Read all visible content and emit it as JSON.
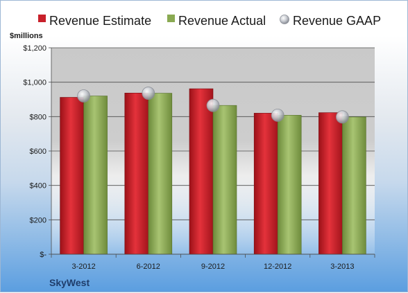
{
  "company": "SkyWest",
  "chart_data": {
    "type": "bar",
    "unit_label": "$millions",
    "categories": [
      "3-2012",
      "6-2012",
      "9-2012",
      "12-2012",
      "3-2013"
    ],
    "series": [
      {
        "name": "Revenue Estimate",
        "kind": "bar",
        "color": "#c8202a",
        "values": [
          912,
          937,
          962,
          820,
          823
        ]
      },
      {
        "name": "Revenue Actual",
        "kind": "bar",
        "color": "#8aaa52",
        "values": [
          920,
          936,
          865,
          808,
          798
        ]
      },
      {
        "name": "Revenue GAAP",
        "kind": "marker",
        "color": "#b8bcc4",
        "values": [
          920,
          936,
          865,
          808,
          798
        ]
      }
    ],
    "y_ticks": [
      {
        "value": 0,
        "label": "$-"
      },
      {
        "value": 200,
        "label": "$200"
      },
      {
        "value": 400,
        "label": "$400"
      },
      {
        "value": 600,
        "label": "$600"
      },
      {
        "value": 800,
        "label": "$800"
      },
      {
        "value": 1000,
        "label": "$1,000"
      },
      {
        "value": 1200,
        "label": "$1,200"
      }
    ],
    "ylim": [
      0,
      1200
    ],
    "grid": true,
    "legend_position": "top"
  }
}
